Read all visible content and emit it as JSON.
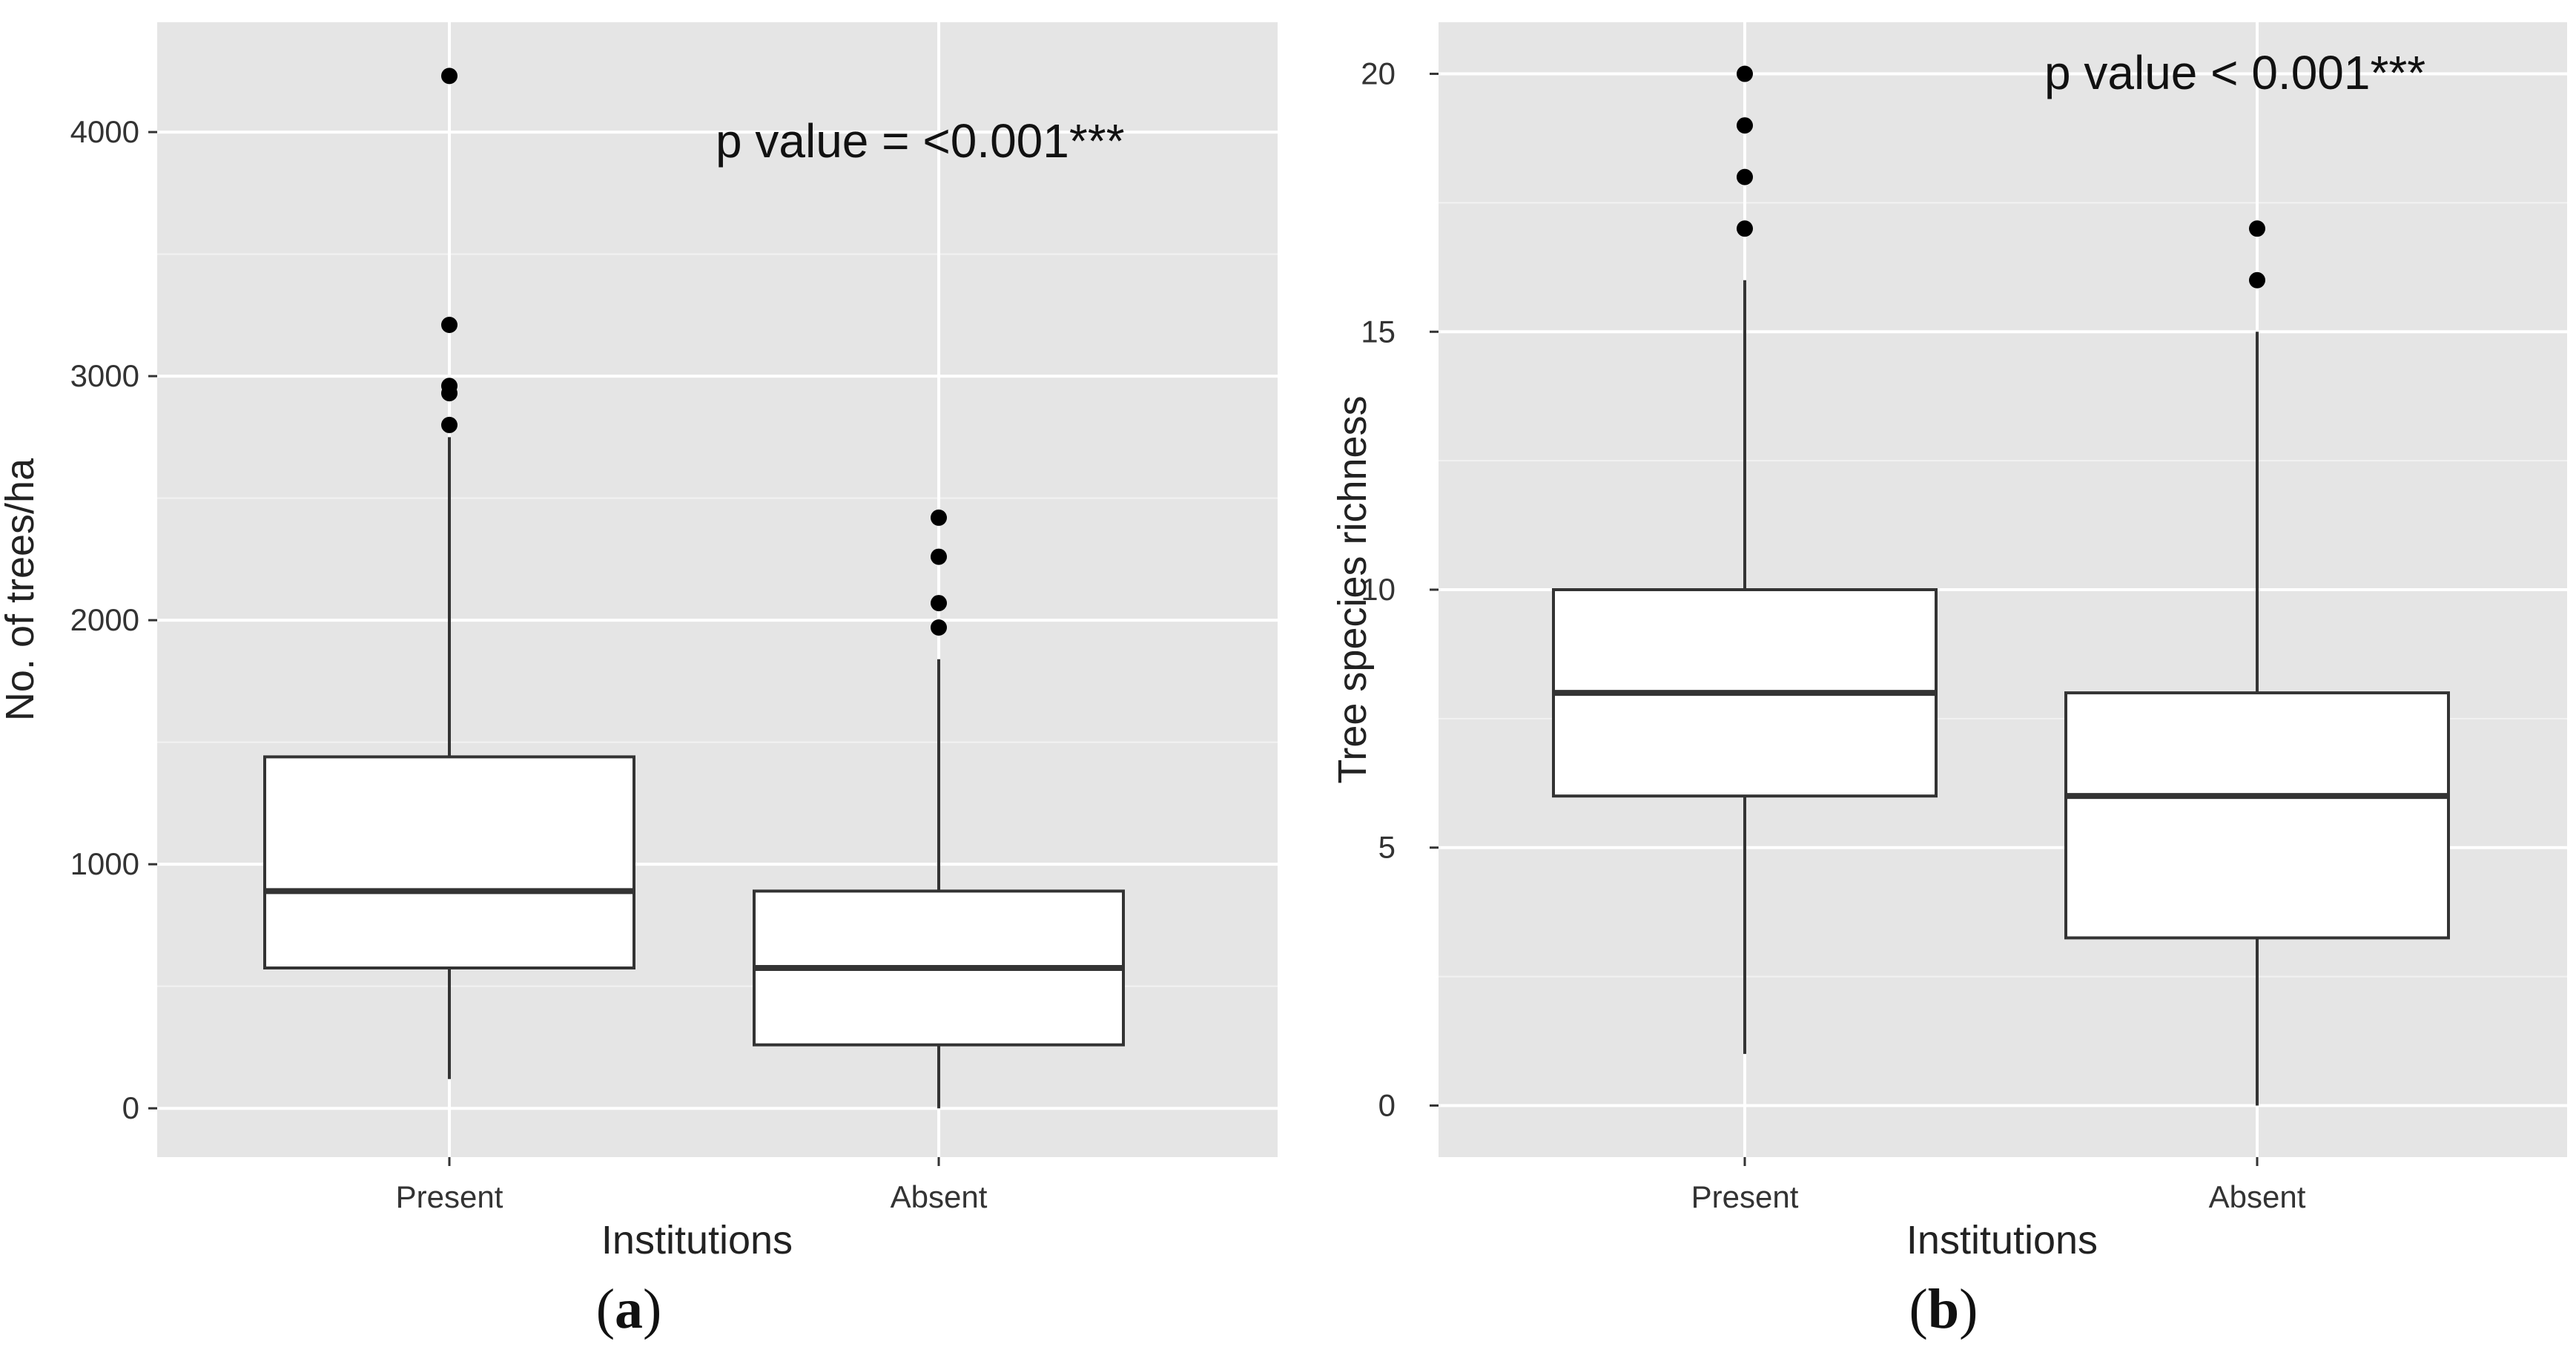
{
  "chart_data": [
    {
      "type": "boxplot",
      "panel_label": "a",
      "xlabel": "Institutions",
      "ylabel": "No. of trees/ha",
      "ylim": [
        -200,
        4450
      ],
      "yticks": [
        0,
        1000,
        2000,
        3000,
        4000
      ],
      "grid": true,
      "annotation": "p value = <0.001***",
      "categories": [
        "Present",
        "Absent"
      ],
      "boxes": [
        {
          "category": "Present",
          "whisker_low": 120,
          "q1": 575,
          "median": 890,
          "q3": 1440,
          "whisker_high": 2750,
          "outliers": [
            2800,
            2930,
            2960,
            3210,
            4230
          ]
        },
        {
          "category": "Absent",
          "whisker_low": 0,
          "q1": 260,
          "median": 575,
          "q3": 890,
          "whisker_high": 1840,
          "outliers": [
            1970,
            2070,
            2260,
            2420
          ]
        }
      ]
    },
    {
      "type": "boxplot",
      "panel_label": "b",
      "xlabel": "Institutions",
      "ylabel": "Tree species richness",
      "ylim": [
        -1,
        21
      ],
      "yticks": [
        0,
        5,
        10,
        15,
        20
      ],
      "grid": true,
      "annotation": "p value < 0.001***",
      "categories": [
        "Present",
        "Absent"
      ],
      "boxes": [
        {
          "category": "Present",
          "whisker_low": 1,
          "q1": 6,
          "median": 8,
          "q3": 10,
          "whisker_high": 16,
          "outliers": [
            17,
            18,
            19,
            20
          ]
        },
        {
          "category": "Absent",
          "whisker_low": 0,
          "q1": 3.25,
          "median": 6,
          "q3": 8,
          "whisker_high": 15,
          "outliers": [
            16,
            17
          ]
        }
      ]
    }
  ],
  "colors": {
    "panel_background": "#e5e5e5",
    "grid_major": "#ffffff",
    "grid_minor": "#f2f2f2",
    "box_fill": "#ffffff",
    "box_stroke": "#333333",
    "outlier": "#000000"
  }
}
